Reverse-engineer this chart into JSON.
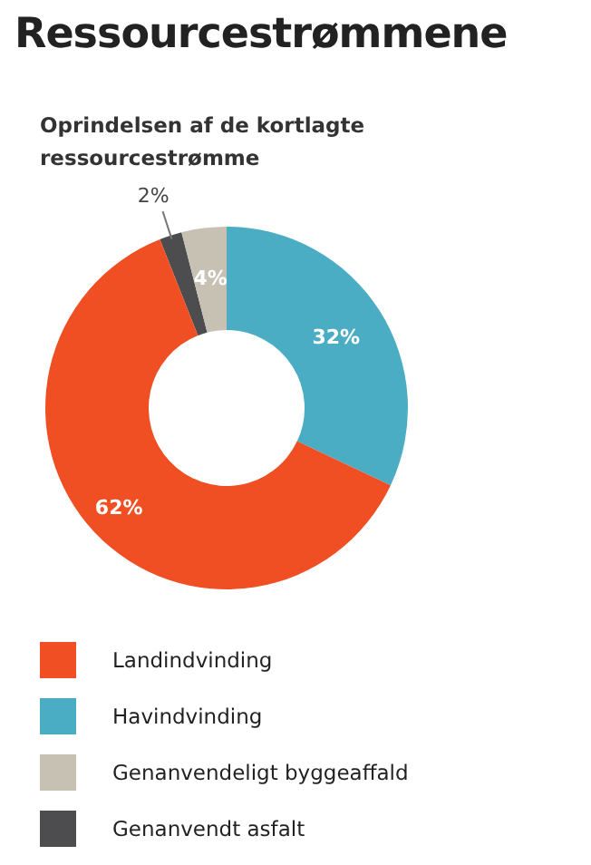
{
  "chart_data": {
    "type": "donut",
    "title": "Ressourcestrømmene",
    "subtitle": "Oprindelsen af de kortlagte ressourcestrømme",
    "categories": [
      "Landindvinding",
      "Havindvinding",
      "Genanvendeligt byggeaffald",
      "Genanvendt asfalt"
    ],
    "values": [
      62,
      32,
      4,
      2
    ],
    "value_labels": [
      "62%",
      "32%",
      "4%",
      "2%"
    ],
    "colors": [
      "#f04e23",
      "#4badc4",
      "#c6c1b2",
      "#4d4d4f"
    ],
    "legend": "bottom"
  }
}
